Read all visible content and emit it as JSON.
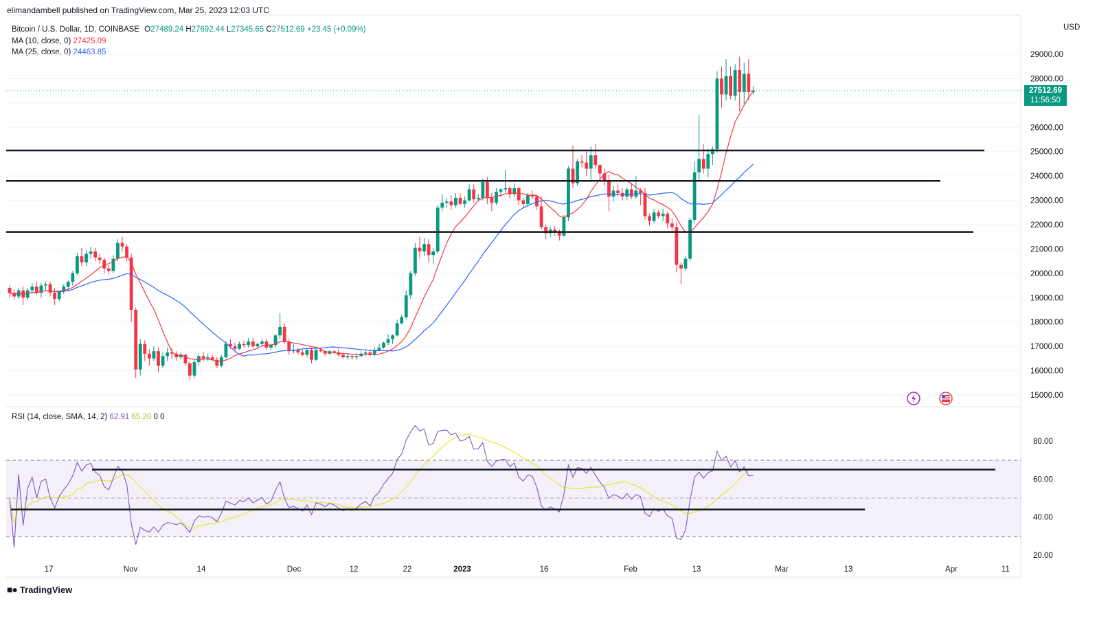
{
  "attribution": "elimandambell published on TradingView.com, Mar 25, 2023 12:03 UTC",
  "legend": {
    "symbol": "Bitcoin / U.S. Dollar, 1D, COINBASE",
    "o_label": "O",
    "o": "27489.24",
    "h_label": "H",
    "h": "27692.44",
    "l_label": "L",
    "l": "27345.65",
    "c_label": "C",
    "c": "27512.69",
    "change": "+23.45 (+0.09%)",
    "ma10_label": "MA (10, close, 0)",
    "ma10_value": "27425.09",
    "ma25_label": "MA (25, close, 0)",
    "ma25_value": "24463.85"
  },
  "rsi_legend": {
    "label": "RSI (14, close, SMA, 14, 2)",
    "rsi_value": "62.91",
    "sma_value": "65.20",
    "z1": "0",
    "z2": "0"
  },
  "currency": "USD",
  "price_tag": {
    "price": "27512.69",
    "countdown": "11:56:50"
  },
  "brand": "TradingView",
  "colors": {
    "up": "#089981",
    "down": "#f23645",
    "ma10": "#f23645",
    "ma25": "#2962ff",
    "rsi": "#7e57c2",
    "rsi_sma": "#e6e62e",
    "rsi_band": "#7e57c2",
    "level_line": "#131722"
  },
  "chart_data": {
    "type": "candlestick",
    "price_axis": {
      "min": 15000,
      "max": 29000,
      "ticks": [
        "29000.00",
        "28000.00",
        "27000.00",
        "26000.00",
        "25000.00",
        "24000.00",
        "23000.00",
        "22000.00",
        "21000.00",
        "20000.00",
        "19000.00",
        "18000.00",
        "17000.00",
        "16000.00",
        "15000.00"
      ]
    },
    "rsi_axis": {
      "ticks": [
        "80.00",
        "60.00",
        "40.00",
        "20.00"
      ],
      "band": [
        30,
        70
      ],
      "mid": 50
    },
    "x_axis": {
      "labels": [
        "17",
        "Nov",
        "14",
        "Dec",
        "12",
        "22",
        "2023",
        "16",
        "Feb",
        "13",
        "Mar",
        "13",
        "Apr",
        "11"
      ],
      "bold": [
        "2023"
      ]
    },
    "horizontal_levels": [
      25050,
      23800,
      21700
    ],
    "rsi_trendlines": [
      65,
      44
    ],
    "candles_ohlc_approx": [
      [
        19400,
        19500,
        19000,
        19200
      ],
      [
        19200,
        19350,
        18900,
        19050
      ],
      [
        19050,
        19400,
        18950,
        19300
      ],
      [
        19300,
        19450,
        18700,
        19000
      ],
      [
        19000,
        19400,
        18900,
        19300
      ],
      [
        19300,
        19600,
        19200,
        19450
      ],
      [
        19450,
        19650,
        19100,
        19200
      ],
      [
        19200,
        19600,
        19000,
        19500
      ],
      [
        19500,
        19650,
        19300,
        19550
      ],
      [
        19550,
        19650,
        19050,
        19200
      ],
      [
        19200,
        19400,
        18700,
        18950
      ],
      [
        18950,
        19300,
        18850,
        19250
      ],
      [
        19250,
        19550,
        19150,
        19450
      ],
      [
        19450,
        19700,
        19300,
        19650
      ],
      [
        19650,
        20100,
        19500,
        20000
      ],
      [
        20000,
        20850,
        19900,
        20700
      ],
      [
        20700,
        21050,
        20300,
        20450
      ],
      [
        20450,
        20950,
        20300,
        20800
      ],
      [
        20800,
        21100,
        20600,
        20900
      ],
      [
        20900,
        21050,
        20500,
        20650
      ],
      [
        20650,
        20800,
        20400,
        20550
      ],
      [
        20550,
        20650,
        20000,
        20200
      ],
      [
        20200,
        20350,
        19950,
        20100
      ],
      [
        20100,
        20750,
        20000,
        20600
      ],
      [
        20600,
        21400,
        20500,
        21250
      ],
      [
        21250,
        21500,
        20900,
        21100
      ],
      [
        21100,
        21200,
        20500,
        20650
      ],
      [
        20650,
        20800,
        18000,
        18500
      ],
      [
        18500,
        18600,
        15700,
        16050
      ],
      [
        16050,
        17300,
        15800,
        17100
      ],
      [
        17100,
        17250,
        16400,
        16700
      ],
      [
        16700,
        16900,
        16200,
        16500
      ],
      [
        16500,
        17000,
        16400,
        16800
      ],
      [
        16800,
        16950,
        15950,
        16200
      ],
      [
        16200,
        16750,
        16100,
        16600
      ],
      [
        16600,
        16950,
        16400,
        16750
      ],
      [
        16750,
        16950,
        16500,
        16700
      ],
      [
        16700,
        16800,
        16400,
        16550
      ],
      [
        16550,
        16750,
        16450,
        16650
      ],
      [
        16650,
        16700,
        16200,
        16300
      ],
      [
        16300,
        16400,
        15600,
        15800
      ],
      [
        15800,
        16450,
        15700,
        16350
      ],
      [
        16350,
        16700,
        16200,
        16600
      ],
      [
        16600,
        16750,
        16400,
        16500
      ],
      [
        16500,
        16700,
        16400,
        16550
      ],
      [
        16550,
        16650,
        16400,
        16450
      ],
      [
        16450,
        16550,
        16100,
        16200
      ],
      [
        16200,
        16650,
        16150,
        16550
      ],
      [
        16550,
        17200,
        16500,
        17100
      ],
      [
        17100,
        17300,
        16900,
        17000
      ],
      [
        17000,
        17150,
        16800,
        16900
      ],
      [
        16900,
        17200,
        16850,
        17100
      ],
      [
        17100,
        17250,
        16950,
        17050
      ],
      [
        17050,
        17350,
        16950,
        17200
      ],
      [
        17200,
        17350,
        16950,
        17000
      ],
      [
        17000,
        17150,
        16900,
        17100
      ],
      [
        17100,
        17300,
        17000,
        17200
      ],
      [
        17200,
        17300,
        16850,
        16950
      ],
      [
        16950,
        17100,
        16850,
        17050
      ],
      [
        17050,
        17500,
        16950,
        17450
      ],
      [
        17450,
        18350,
        17300,
        17800
      ],
      [
        17800,
        17950,
        17100,
        17200
      ],
      [
        17200,
        17300,
        16650,
        16800
      ],
      [
        16800,
        17100,
        16700,
        16850
      ],
      [
        16850,
        16950,
        16650,
        16750
      ],
      [
        16750,
        16850,
        16600,
        16650
      ],
      [
        16650,
        16900,
        16550,
        16850
      ],
      [
        16850,
        16950,
        16300,
        16450
      ],
      [
        16450,
        16900,
        16400,
        16850
      ],
      [
        16850,
        16950,
        16750,
        16800
      ],
      [
        16800,
        16850,
        16600,
        16700
      ],
      [
        16700,
        16850,
        16650,
        16800
      ],
      [
        16800,
        16850,
        16700,
        16750
      ],
      [
        16750,
        16900,
        16550,
        16650
      ],
      [
        16650,
        16750,
        16500,
        16550
      ],
      [
        16550,
        16700,
        16450,
        16600
      ],
      [
        16600,
        16650,
        16450,
        16550
      ],
      [
        16550,
        16700,
        16450,
        16600
      ],
      [
        16600,
        16800,
        16550,
        16700
      ],
      [
        16700,
        16850,
        16600,
        16750
      ],
      [
        16750,
        16850,
        16600,
        16650
      ],
      [
        16650,
        16950,
        16600,
        16850
      ],
      [
        16850,
        17100,
        16800,
        16950
      ],
      [
        16950,
        17200,
        16900,
        17150
      ],
      [
        17150,
        17500,
        17050,
        17300
      ],
      [
        17300,
        17500,
        17100,
        17450
      ],
      [
        17450,
        18100,
        17400,
        17950
      ],
      [
        17950,
        18300,
        17900,
        18200
      ],
      [
        18200,
        19300,
        18100,
        19100
      ],
      [
        19100,
        20100,
        18950,
        20000
      ],
      [
        20000,
        21250,
        19900,
        21050
      ],
      [
        21050,
        21500,
        20600,
        20900
      ],
      [
        20900,
        21450,
        20700,
        21200
      ],
      [
        21200,
        21400,
        20450,
        20750
      ],
      [
        20750,
        21050,
        20400,
        20900
      ],
      [
        20900,
        22800,
        20800,
        22700
      ],
      [
        22700,
        23250,
        22550,
        22900
      ],
      [
        22900,
        23100,
        22700,
        22950
      ],
      [
        22950,
        23200,
        22600,
        22800
      ],
      [
        22800,
        23300,
        22700,
        23100
      ],
      [
        23100,
        23300,
        22800,
        22850
      ],
      [
        22850,
        23150,
        22700,
        23000
      ],
      [
        23000,
        23650,
        22950,
        23450
      ],
      [
        23450,
        23650,
        22900,
        23050
      ],
      [
        23050,
        23250,
        22950,
        23100
      ],
      [
        23100,
        23900,
        23000,
        23750
      ],
      [
        23750,
        23950,
        22850,
        23100
      ],
      [
        23100,
        23300,
        22550,
        22900
      ],
      [
        22900,
        23500,
        22800,
        23350
      ],
      [
        23350,
        23500,
        23150,
        23450
      ],
      [
        23450,
        24250,
        23300,
        23500
      ],
      [
        23500,
        23600,
        23100,
        23250
      ],
      [
        23250,
        23700,
        23150,
        23500
      ],
      [
        23500,
        23550,
        22800,
        23000
      ],
      [
        23000,
        23100,
        22700,
        22850
      ],
      [
        22850,
        23300,
        22750,
        23200
      ],
      [
        23200,
        23400,
        23050,
        23150
      ],
      [
        23150,
        23200,
        22600,
        22750
      ],
      [
        22750,
        23150,
        21800,
        21900
      ],
      [
        21900,
        22000,
        21400,
        21650
      ],
      [
        21650,
        21900,
        21500,
        21800
      ],
      [
        21800,
        21950,
        21550,
        21700
      ],
      [
        21700,
        21800,
        21350,
        21550
      ],
      [
        21550,
        22400,
        21500,
        22300
      ],
      [
        22300,
        24400,
        22150,
        24300
      ],
      [
        24300,
        25250,
        23500,
        23700
      ],
      [
        23700,
        24700,
        23600,
        24600
      ],
      [
        24600,
        24850,
        24350,
        24550
      ],
      [
        24550,
        25000,
        24000,
        24300
      ],
      [
        24300,
        25200,
        23850,
        24850
      ],
      [
        24850,
        25300,
        24300,
        24450
      ],
      [
        24450,
        24500,
        23900,
        24100
      ],
      [
        24100,
        24300,
        23600,
        23800
      ],
      [
        23800,
        24050,
        22550,
        23150
      ],
      [
        23150,
        23600,
        22950,
        23400
      ],
      [
        23400,
        23700,
        23150,
        23300
      ],
      [
        23300,
        23500,
        23000,
        23150
      ],
      [
        23150,
        23550,
        23000,
        23450
      ],
      [
        23450,
        23700,
        23050,
        23150
      ],
      [
        23150,
        24000,
        23050,
        23400
      ],
      [
        23400,
        23500,
        22800,
        23300
      ],
      [
        23300,
        23500,
        22200,
        22350
      ],
      [
        22350,
        22450,
        21950,
        22150
      ],
      [
        22150,
        22650,
        22050,
        22500
      ],
      [
        22500,
        22600,
        22250,
        22350
      ],
      [
        22350,
        22650,
        22150,
        22450
      ],
      [
        22450,
        22550,
        21850,
        22050
      ],
      [
        22050,
        22250,
        21750,
        21900
      ],
      [
        21900,
        22100,
        20050,
        20350
      ],
      [
        20350,
        20450,
        19550,
        20200
      ],
      [
        20200,
        20700,
        20100,
        20600
      ],
      [
        20600,
        22300,
        20500,
        22200
      ],
      [
        22200,
        24600,
        22050,
        24150
      ],
      [
        24150,
        26500,
        23800,
        24700
      ],
      [
        24700,
        25300,
        24100,
        24300
      ],
      [
        24300,
        25100,
        23950,
        24900
      ],
      [
        24900,
        25200,
        24450,
        25100
      ],
      [
        25100,
        28300,
        24950,
        28000
      ],
      [
        28000,
        28500,
        26800,
        27350
      ],
      [
        27350,
        28800,
        27100,
        28100
      ],
      [
        28100,
        28500,
        27150,
        27300
      ],
      [
        27300,
        28600,
        27100,
        28350
      ],
      [
        28350,
        28900,
        26650,
        27450
      ],
      [
        27450,
        28650,
        26950,
        28200
      ],
      [
        28200,
        28800,
        27100,
        27450
      ],
      [
        27450,
        27692,
        27345,
        27512
      ]
    ]
  }
}
